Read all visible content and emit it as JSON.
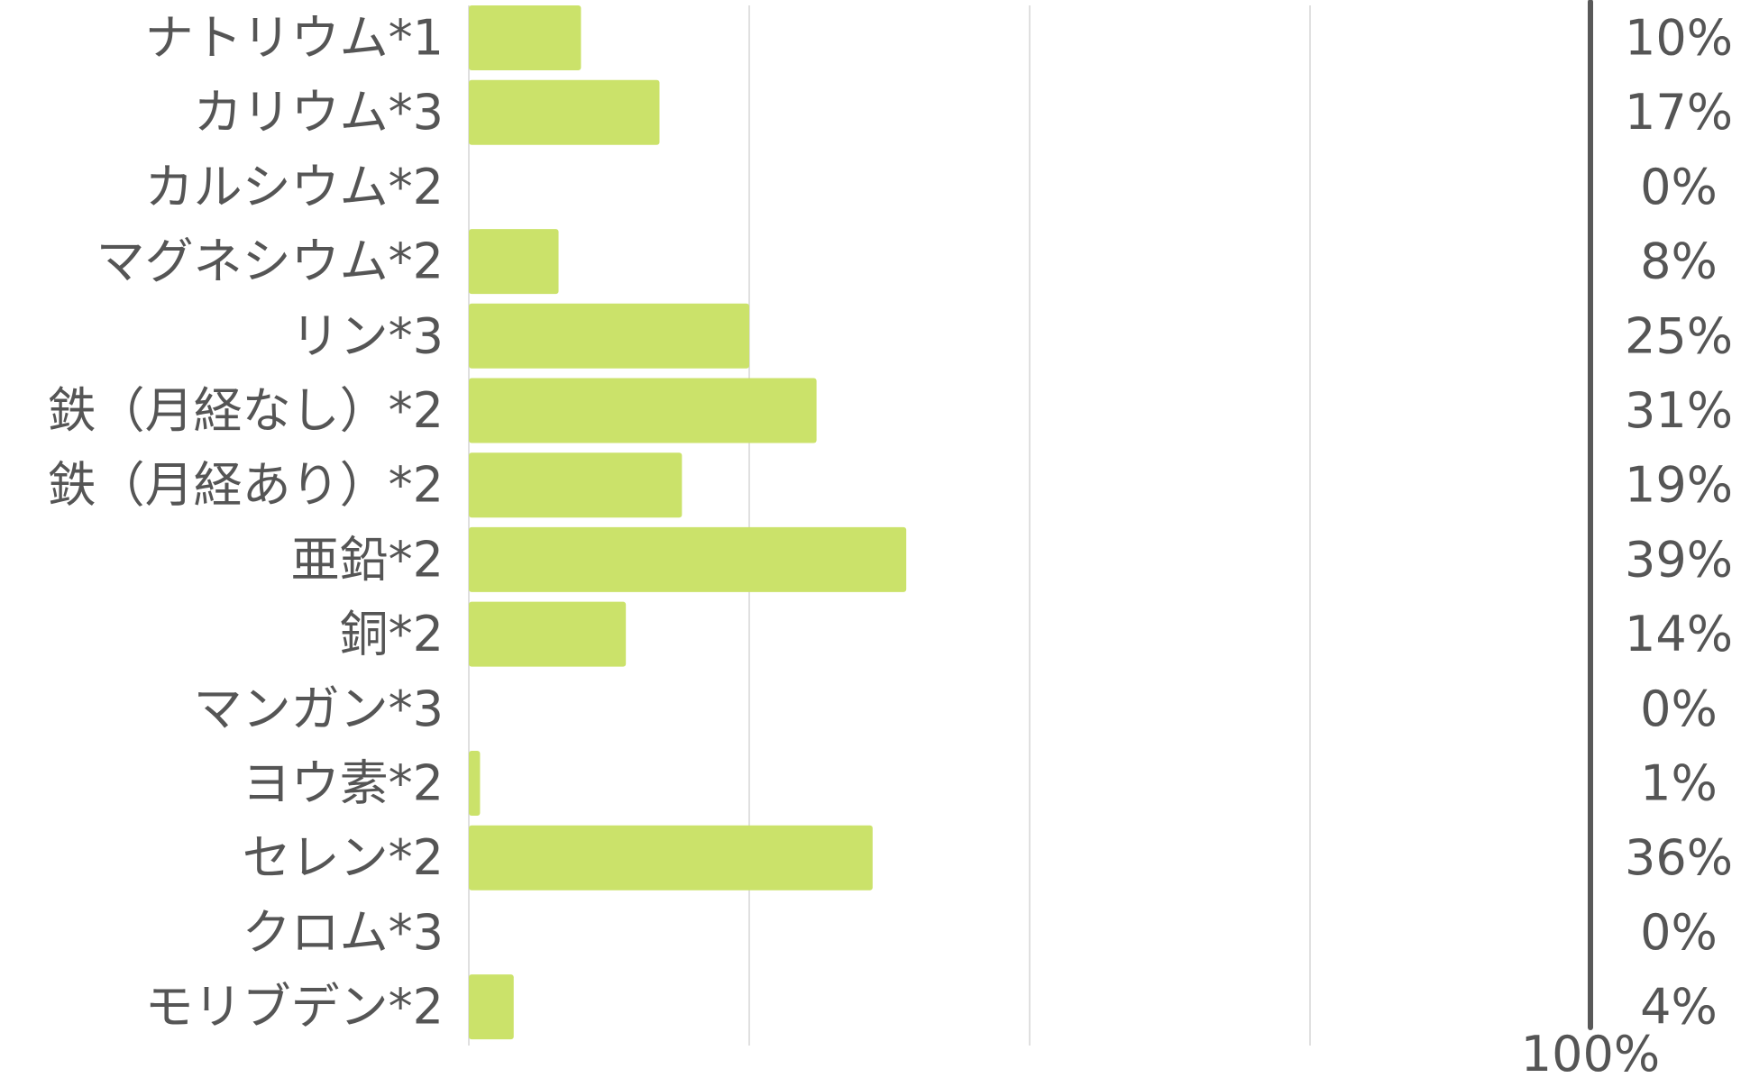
{
  "chart_data": {
    "type": "bar",
    "orientation": "horizontal",
    "categories": [
      "ナトリウム*1",
      "カリウム*3",
      "カルシウム*2",
      "マグネシウム*2",
      "リン*3",
      "鉄（月経なし）*2",
      "鉄（月経あり）*2",
      "亜鉛*2",
      "銅*2",
      "マンガン*3",
      "ヨウ素*2",
      "セレン*2",
      "クロム*3",
      "モリブデン*2"
    ],
    "values": [
      10,
      17,
      0,
      8,
      25,
      31,
      19,
      39,
      14,
      0,
      1,
      36,
      0,
      4
    ],
    "value_labels": [
      "10%",
      "17%",
      "0%",
      "8%",
      "25%",
      "31%",
      "19%",
      "39%",
      "14%",
      "0%",
      "1%",
      "36%",
      "0%",
      "4%"
    ],
    "xlim": [
      0,
      100
    ],
    "reference_line": {
      "value": 100,
      "label": "100%"
    },
    "grid": true,
    "colors": {
      "bar": "#cbe26a",
      "grid": "#d6d6d6",
      "reference_line": "#595959",
      "text": "#555555"
    }
  }
}
